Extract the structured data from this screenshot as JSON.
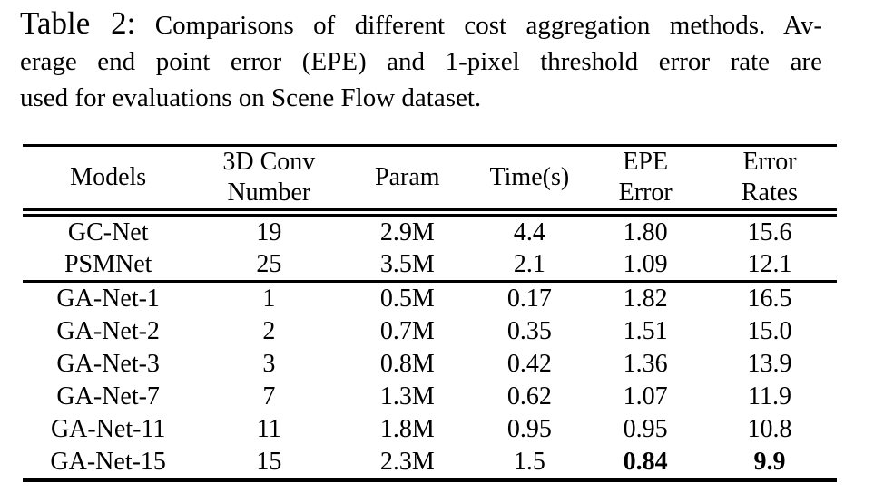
{
  "caption": {
    "label": "Table 2:",
    "line1_rest": "Comparisons of different cost aggregation methods. Av-",
    "line2": "erage end point error (EPE) and 1-pixel threshold error rate are",
    "line3": "used for evaluations on Scene Flow dataset."
  },
  "table": {
    "headers": {
      "models": {
        "line1": "Models",
        "line2": ""
      },
      "conv": {
        "line1": "3D Conv",
        "line2": "Number"
      },
      "param": {
        "line1": "Param",
        "line2": ""
      },
      "time": {
        "line1": "Time(s)",
        "line2": ""
      },
      "epe": {
        "line1": "EPE",
        "line2": "Error"
      },
      "err": {
        "line1": "Error",
        "line2": "Rates"
      }
    },
    "rows": [
      {
        "model": "GC-Net",
        "conv": "19",
        "param": "2.9M",
        "time": "4.4",
        "epe": "1.80",
        "err": "15.6"
      },
      {
        "model": "PSMNet",
        "conv": "25",
        "param": "3.5M",
        "time": "2.1",
        "epe": "1.09",
        "err": "12.1"
      },
      {
        "model": "GA-Net-1",
        "conv": "1",
        "param": "0.5M",
        "time": "0.17",
        "epe": "1.82",
        "err": "16.5"
      },
      {
        "model": "GA-Net-2",
        "conv": "2",
        "param": "0.7M",
        "time": "0.35",
        "epe": "1.51",
        "err": "15.0"
      },
      {
        "model": "GA-Net-3",
        "conv": "3",
        "param": "0.8M",
        "time": "0.42",
        "epe": "1.36",
        "err": "13.9"
      },
      {
        "model": "GA-Net-7",
        "conv": "7",
        "param": "1.3M",
        "time": "0.62",
        "epe": "1.07",
        "err": "11.9"
      },
      {
        "model": "GA-Net-11",
        "conv": "11",
        "param": "1.8M",
        "time": "0.95",
        "epe": "0.95",
        "err": "10.8"
      },
      {
        "model": "GA-Net-15",
        "conv": "15",
        "param": "2.3M",
        "time": "1.5",
        "epe": "0.84",
        "err": "9.9"
      }
    ],
    "text_color": "#000000",
    "background_color": "#ffffff"
  }
}
